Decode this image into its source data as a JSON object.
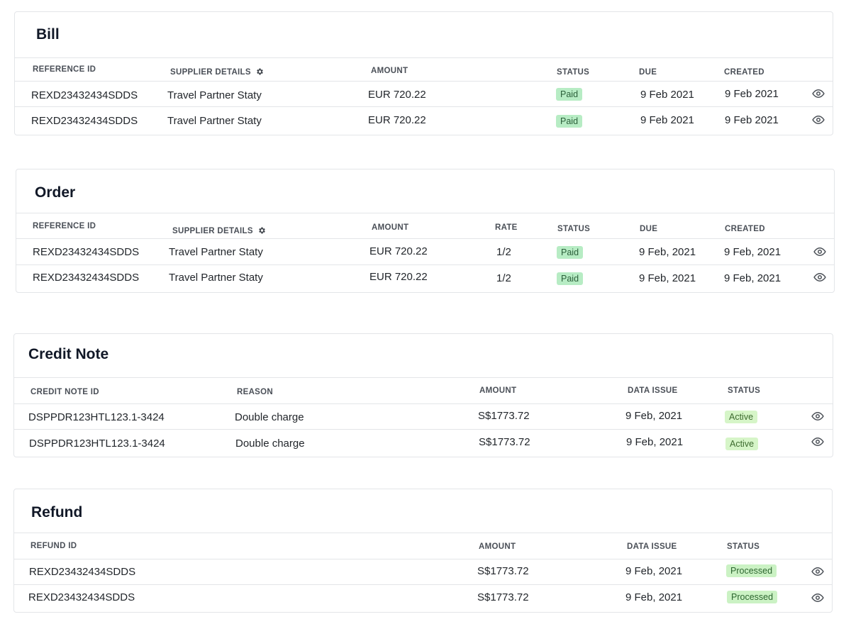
{
  "bill": {
    "title": "Bill",
    "headers": {
      "reference_id": "REFERENCE ID",
      "supplier_details": "SUPPLIER DETAILS",
      "amount": "AMOUNT",
      "status": "STATUS",
      "due": "DUE",
      "created": "CREATED"
    },
    "rows": [
      {
        "reference_id": "REXD23432434SDDS",
        "supplier": "Travel Partner Staty",
        "amount": "EUR 720.22",
        "status": "Paid",
        "due": "9 Feb 2021",
        "created": "9 Feb 2021"
      },
      {
        "reference_id": "REXD23432434SDDS",
        "supplier": "Travel Partner Staty",
        "amount": "EUR 720.22",
        "status": "Paid",
        "due": "9 Feb 2021",
        "created": "9 Feb 2021"
      }
    ]
  },
  "order": {
    "title": "Order",
    "headers": {
      "reference_id": "REFERENCE ID",
      "supplier_details": "SUPPLIER DETAILS",
      "amount": "AMOUNT",
      "rate": "RATE",
      "status": "STATUS",
      "due": "DUE",
      "created": "CREATED"
    },
    "rows": [
      {
        "reference_id": "REXD23432434SDDS",
        "supplier": "Travel Partner Staty",
        "amount": "EUR 720.22",
        "rate": "1/2",
        "status": "Paid",
        "due": "9 Feb, 2021",
        "created": "9 Feb, 2021"
      },
      {
        "reference_id": "REXD23432434SDDS",
        "supplier": "Travel Partner Staty",
        "amount": "EUR 720.22",
        "rate": "1/2",
        "status": "Paid",
        "due": "9 Feb, 2021",
        "created": "9 Feb, 2021"
      }
    ]
  },
  "credit_note": {
    "title": "Credit Note",
    "headers": {
      "credit_note_id": "CREDIT NOTE ID",
      "reason": "REASON",
      "amount": "AMOUNT",
      "data_issue": "DATA ISSUE",
      "status": "STATUS"
    },
    "rows": [
      {
        "credit_note_id": "DSPPDR123HTL123.1-3424",
        "reason": "Double charge",
        "amount": "S$1773.72",
        "data_issue": "9 Feb, 2021",
        "status": "Active"
      },
      {
        "credit_note_id": "DSPPDR123HTL123.1-3424",
        "reason": "Double charge",
        "amount": "S$1773.72",
        "data_issue": "9 Feb, 2021",
        "status": "Active"
      }
    ]
  },
  "refund": {
    "title": "Refund",
    "headers": {
      "refund_id": "REFUND ID",
      "amount": "AMOUNT",
      "data_issue": "DATA ISSUE",
      "status": "STATUS"
    },
    "rows": [
      {
        "refund_id": "REXD23432434SDDS",
        "amount": "S$1773.72",
        "data_issue": "9 Feb, 2021",
        "status": "Processed"
      },
      {
        "refund_id": "REXD23432434SDDS",
        "amount": "S$1773.72",
        "data_issue": "9 Feb, 2021",
        "status": "Processed"
      }
    ]
  },
  "icons": {
    "settings": "gear-icon",
    "view": "eye-icon"
  },
  "colors": {
    "paid_badge": "#b7ecc4",
    "active_badge": "#d6f5c8",
    "processed_badge": "#cbf2c4",
    "border": "#e3e5e8"
  }
}
